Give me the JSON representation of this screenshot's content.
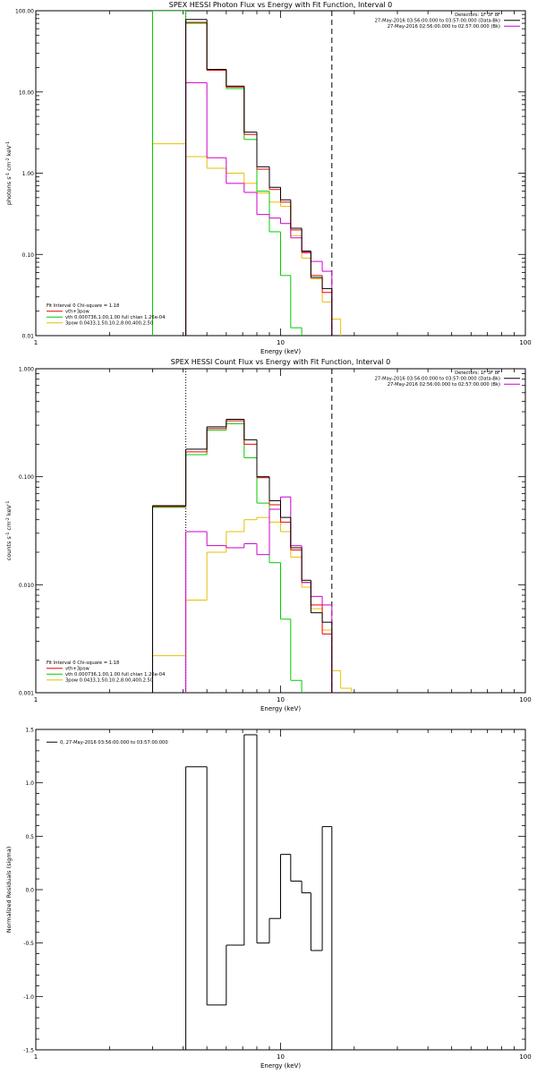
{
  "chart_data": [
    {
      "type": "line",
      "title": "SPEX HESSI Photon Flux vs Energy with Fit Function, Interval 0",
      "xlabel": "Energy (keV)",
      "ylabel_parts": [
        "photons s",
        "-1",
        " cm",
        "-2",
        " keV",
        "-1"
      ],
      "xscale": "log",
      "yscale": "log",
      "xlim": [
        1,
        100
      ],
      "ylim": [
        0.01,
        100
      ],
      "x_ticks": [
        "1",
        "10",
        "100"
      ],
      "y_ticks": [
        "0.01",
        "0.10",
        "1.00",
        "10.00",
        "100.00"
      ],
      "legend_top": [
        "Detectors: 1F 3F 8F",
        "27-May-2016 03:56:00.000 to 03:57:00.000 (Data-Bk)",
        "27-May-2016 02:56:00.000 to 02:57:00.000 (Bk)"
      ],
      "legend_bottom_header": "Fit Interval 0   Chi-square = 1.18",
      "legend_bottom": [
        "vth+3pow",
        "vth 0.000736,1.00,1.00   full chian 1.26e-04",
        "3pow 0.0433,1.50,10.2,8.00,400,2.50"
      ],
      "vlines": [
        {
          "x": 4.1,
          "style": "dotted"
        },
        {
          "x": 16.2,
          "style": "dashed"
        }
      ],
      "bin_edges": [
        3.0,
        4.1,
        5.0,
        6.0,
        7.1,
        8.0,
        9.0,
        10.0,
        11.0,
        12.2,
        13.3,
        14.8,
        16.2,
        17.6
      ],
      "series": [
        {
          "name": "Data-Bk",
          "color": "#000000",
          "values": [
            null,
            78,
            19,
            11.8,
            3.2,
            1.2,
            0.67,
            0.47,
            0.21,
            0.11,
            0.052,
            0.038,
            null
          ]
        },
        {
          "name": "Bk",
          "color": "#cc00cc",
          "values": [
            null,
            13,
            1.55,
            0.75,
            0.58,
            0.31,
            0.28,
            0.24,
            0.16,
            0.108,
            0.082,
            0.062,
            null
          ]
        },
        {
          "name": "vth+3pow",
          "color": "#ee0000",
          "values": [
            null,
            72,
            18.5,
            11.5,
            3.0,
            1.12,
            0.63,
            0.44,
            0.2,
            0.105,
            0.055,
            0.034,
            null
          ]
        },
        {
          "name": "vth",
          "color": "#00cc00",
          "values": [
            100,
            70,
            18.5,
            11,
            2.6,
            0.6,
            0.19,
            0.055,
            0.0125,
            null,
            null,
            null,
            null
          ]
        },
        {
          "name": "3pow",
          "color": "#e6c000",
          "values": [
            2.3,
            1.6,
            1.15,
            1.0,
            0.75,
            0.57,
            0.44,
            0.39,
            0.17,
            0.09,
            0.05,
            0.026,
            0.016
          ]
        }
      ]
    },
    {
      "type": "line",
      "title": "SPEX HESSI Count Flux vs Energy with Fit Function, Interval 0",
      "xlabel": "Energy (keV)",
      "ylabel_parts": [
        "counts s",
        "-1",
        " cm",
        "-2",
        " keV",
        "-1"
      ],
      "xscale": "log",
      "yscale": "log",
      "xlim": [
        1,
        100
      ],
      "ylim": [
        0.001,
        1
      ],
      "x_ticks": [
        "1",
        "10",
        "100"
      ],
      "y_ticks": [
        "0.001",
        "0.010",
        "0.100",
        "1.000"
      ],
      "legend_top": [
        "Detectors: 1F 3F 8F",
        "27-May-2016 03:56:00.000 to 03:57:00.000 (Data-Bk)",
        "27-May-2016 02:56:00.000 to 02:57:00.000 (Bk)"
      ],
      "legend_bottom_header": "Fit Interval 0   Chi-square = 1.18",
      "legend_bottom": [
        "vth+3pow",
        "vth 0.000736,1.00,1.00   full chian 1.26e-04",
        "3pow 0.0433,1.50,10.2,8.00,400,2.50"
      ],
      "vlines": [
        {
          "x": 4.1,
          "style": "dotted"
        },
        {
          "x": 16.2,
          "style": "dashed"
        }
      ],
      "bin_edges": [
        3.0,
        4.1,
        5.0,
        6.0,
        7.1,
        8.0,
        9.0,
        10.0,
        11.0,
        12.2,
        13.3,
        14.8,
        16.2,
        17.6,
        19.5
      ],
      "series": [
        {
          "name": "Data-Bk",
          "color": "#000000",
          "values": [
            0.054,
            0.18,
            0.29,
            0.34,
            0.22,
            0.1,
            0.06,
            0.042,
            0.022,
            0.011,
            0.0055,
            0.0045,
            null,
            null
          ]
        },
        {
          "name": "Bk",
          "color": "#cc00cc",
          "values": [
            null,
            0.031,
            0.023,
            0.022,
            0.024,
            0.019,
            0.05,
            0.065,
            0.023,
            0.0105,
            0.0078,
            0.0065,
            null,
            null
          ]
        },
        {
          "name": "vth+3pow",
          "color": "#ee0000",
          "values": [
            0.053,
            0.17,
            0.28,
            0.33,
            0.2,
            0.098,
            0.055,
            0.038,
            0.021,
            0.0105,
            0.0065,
            0.0035,
            null,
            null
          ]
        },
        {
          "name": "vth",
          "color": "#00cc00",
          "values": [
            0.052,
            0.16,
            0.27,
            0.31,
            0.15,
            0.057,
            0.016,
            0.0048,
            0.0013,
            null,
            null,
            null,
            null,
            null
          ]
        },
        {
          "name": "3pow",
          "color": "#e6c000",
          "values": [
            0.0022,
            0.0072,
            0.02,
            0.031,
            0.04,
            0.042,
            0.038,
            0.031,
            0.018,
            0.0095,
            0.006,
            0.0038,
            0.0016,
            0.0011
          ]
        }
      ]
    },
    {
      "type": "line",
      "title": "",
      "xlabel": "Energy (keV)",
      "ylabel": "Normalized Residuals (sigma)",
      "xscale": "log",
      "yscale": "linear",
      "xlim": [
        1,
        100
      ],
      "ylim": [
        -1.5,
        1.5
      ],
      "x_ticks": [
        "1",
        "10",
        "100"
      ],
      "y_ticks": [
        "-1.5",
        "-1.0",
        "-0.5",
        "0.0",
        "0.5",
        "1.0",
        "1.5"
      ],
      "legend": [
        "0, 27-May-2016 03:56:00.000 to 03:57:00.000"
      ],
      "bin_edges": [
        4.1,
        5.0,
        6.0,
        7.1,
        8.0,
        9.0,
        10.0,
        11.0,
        12.2,
        13.3,
        14.8,
        16.2
      ],
      "series": [
        {
          "name": "0, 27-May-2016 03:56:00.000 to 03:57:00.000",
          "color": "#000000",
          "values": [
            1.15,
            -1.08,
            -0.52,
            1.45,
            -0.5,
            -0.27,
            0.33,
            0.08,
            -0.03,
            -0.57,
            0.59
          ]
        }
      ]
    }
  ]
}
